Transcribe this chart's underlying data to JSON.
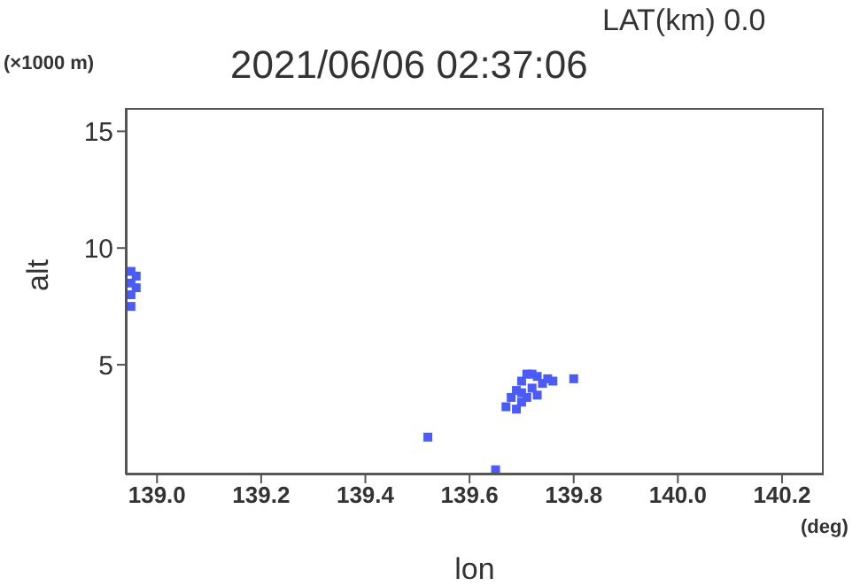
{
  "chart_data": {
    "type": "scatter",
    "title": "2021/06/06 02:37:06",
    "xlabel": "lon",
    "ylabel": "alt",
    "annotations": [
      "LAT(km) 0.0",
      "(×1000 m)",
      "(deg)"
    ],
    "marker": "square",
    "xlim": [
      138.94,
      140.28
    ],
    "ylim": [
      0.3,
      16
    ],
    "xticks": [
      {
        "value": 139.0,
        "label": "139.0"
      },
      {
        "value": 139.2,
        "label": "139.2"
      },
      {
        "value": 139.4,
        "label": "139.4"
      },
      {
        "value": 139.6,
        "label": "139.6"
      },
      {
        "value": 139.8,
        "label": "139.8"
      },
      {
        "value": 140.0,
        "label": "140.0"
      },
      {
        "value": 140.2,
        "label": "140.2"
      }
    ],
    "yticks": [
      5,
      10,
      15
    ],
    "series": [
      {
        "color": "#4a5cf5",
        "x": [
          138.95,
          138.95,
          138.95,
          138.95,
          138.96,
          138.96,
          139.67,
          139.68,
          139.69,
          139.69,
          139.7,
          139.7,
          139.7,
          139.71,
          139.71,
          139.72,
          139.72,
          139.73,
          139.73,
          139.74,
          139.75,
          139.76,
          139.8,
          139.52,
          139.65
        ],
        "values": [
          7.5,
          8.0,
          8.5,
          9.0,
          8.3,
          8.8,
          3.2,
          3.6,
          3.9,
          3.1,
          3.4,
          3.8,
          4.3,
          3.6,
          4.6,
          4.0,
          4.6,
          3.7,
          4.5,
          4.2,
          4.4,
          4.3,
          4.4,
          1.9,
          0.5
        ]
      }
    ]
  }
}
